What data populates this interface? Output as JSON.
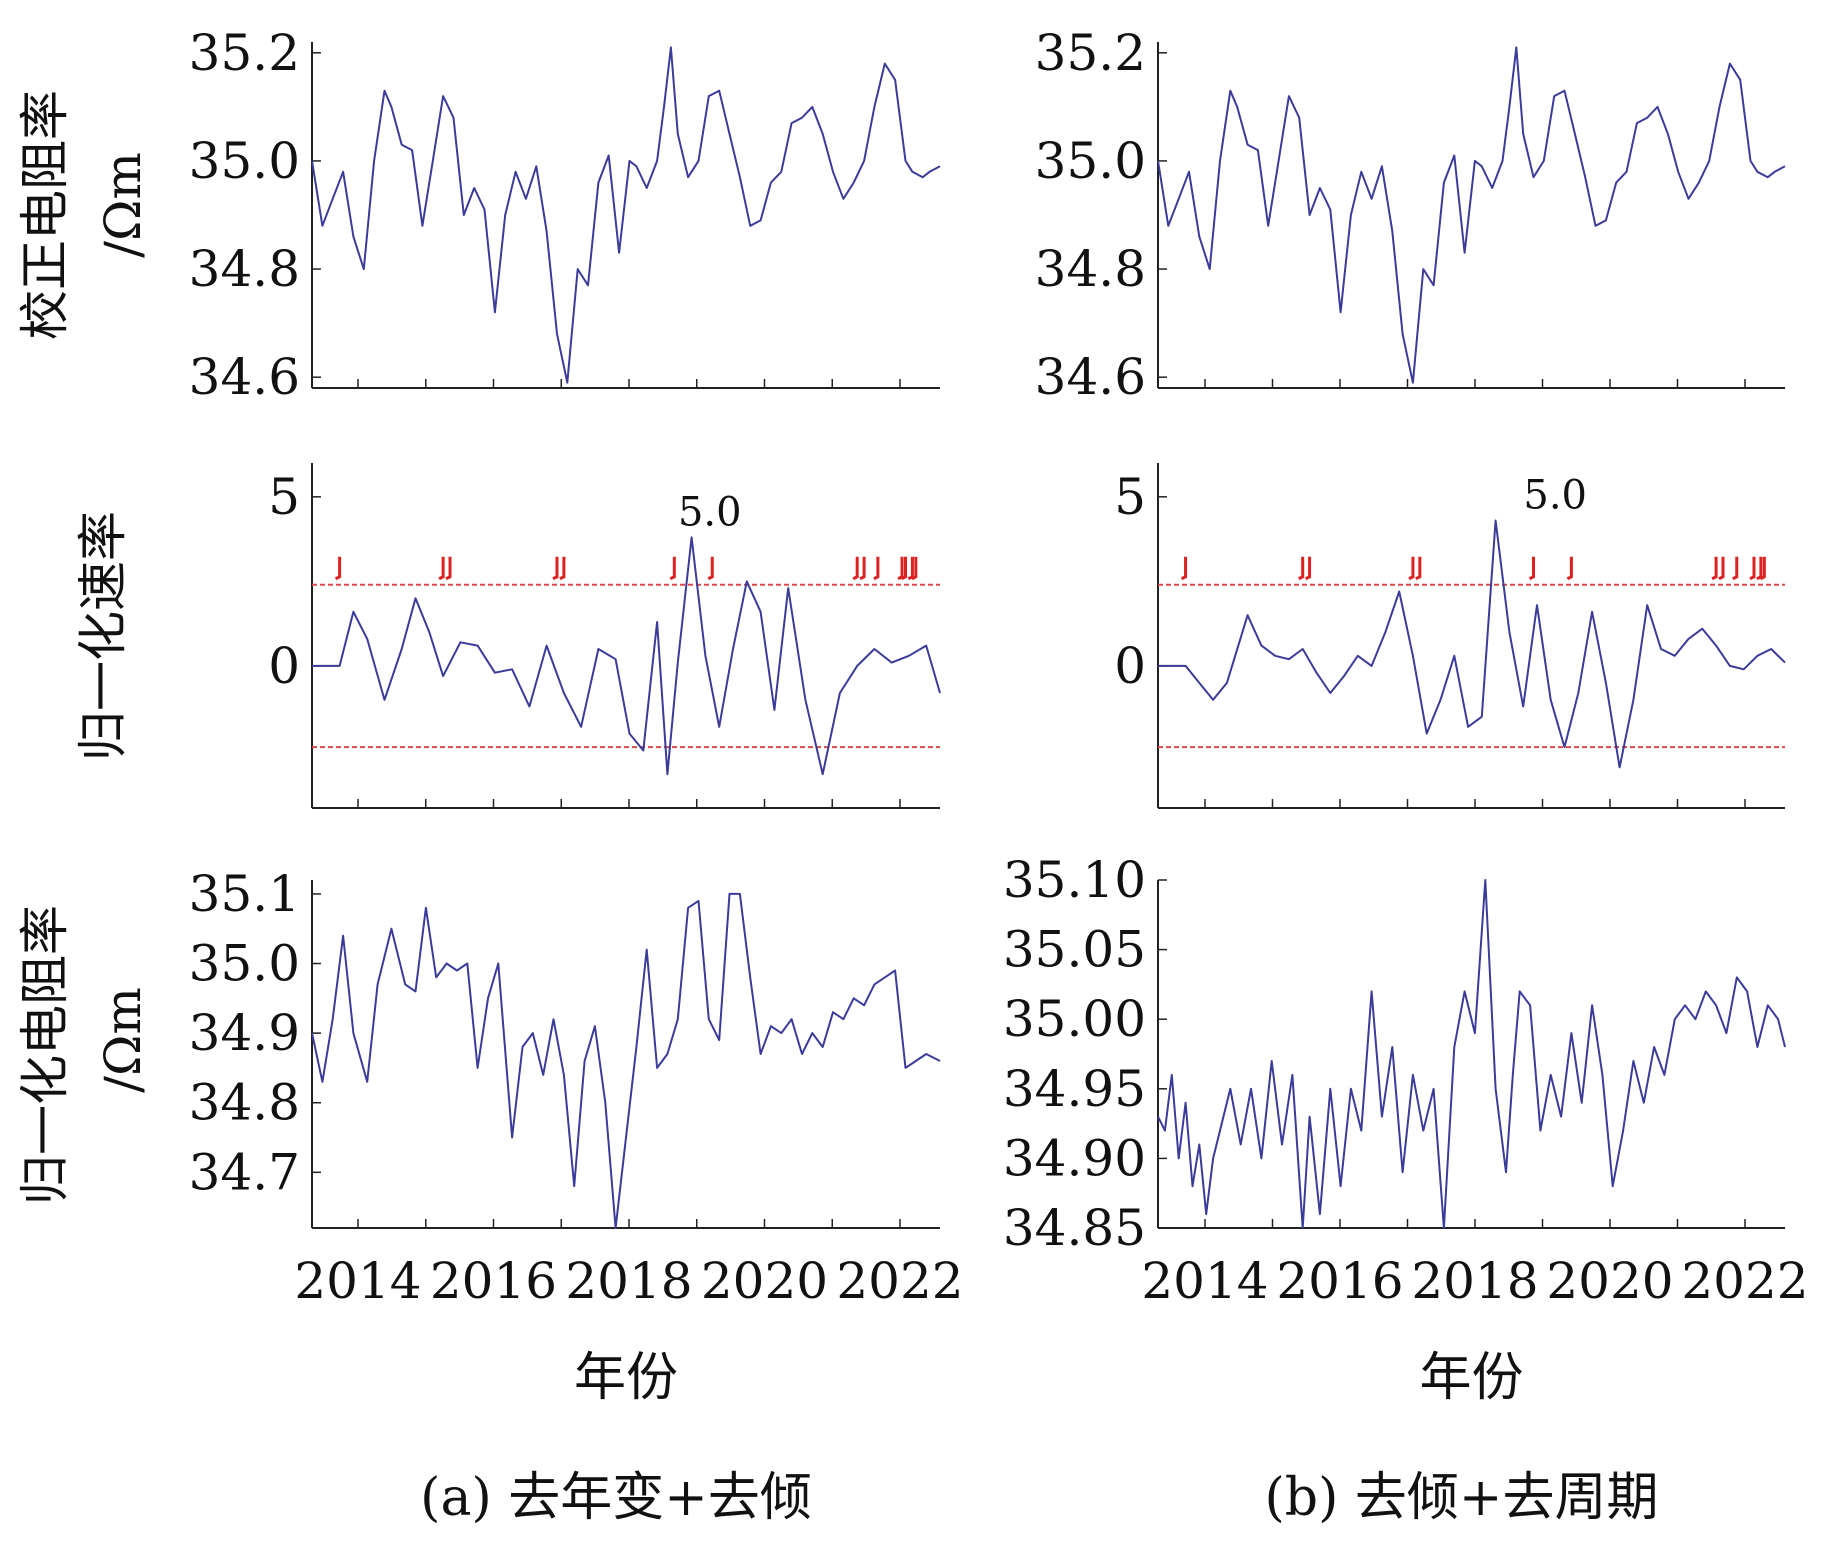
{
  "chart_data": [
    {
      "id": "a-top",
      "type": "line",
      "ylabel_lines": [
        "校正电阻率",
        "/Ωm"
      ],
      "xlim": [
        2013.4,
        2022.5
      ],
      "ylim": [
        34.58,
        35.22
      ],
      "yticks": [
        "34.6",
        "34.8",
        "35.0",
        "35.2"
      ],
      "line_color": "#3b3b9a",
      "series": [
        {
          "x": [
            2013.4,
            2013.55,
            2013.7,
            2013.85,
            2014.0,
            2014.15,
            2014.3,
            2014.45,
            2014.55,
            2014.7,
            2014.85,
            2015.0,
            2015.15,
            2015.3,
            2015.45,
            2015.6,
            2015.75,
            2015.9,
            2016.05,
            2016.2,
            2016.35,
            2016.5,
            2016.65,
            2016.8,
            2016.95,
            2017.1,
            2017.25,
            2017.4,
            2017.55,
            2017.7,
            2017.85,
            2018.0,
            2018.1,
            2018.25,
            2018.4,
            2018.5,
            2018.6,
            2018.7,
            2018.85,
            2019.0,
            2019.15,
            2019.3,
            2019.45,
            2019.6,
            2019.75,
            2019.9,
            2020.05,
            2020.2,
            2020.35,
            2020.5,
            2020.65,
            2020.8,
            2020.95,
            2021.1,
            2021.25,
            2021.4,
            2021.55,
            2021.7,
            2021.85,
            2022.0,
            2022.1,
            2022.25,
            2022.35,
            2022.5
          ],
          "y": [
            35.0,
            34.88,
            34.93,
            34.98,
            34.86,
            34.8,
            35.0,
            35.13,
            35.1,
            35.03,
            35.02,
            34.88,
            35.0,
            35.12,
            35.08,
            34.9,
            34.95,
            34.91,
            34.72,
            34.9,
            34.98,
            34.93,
            34.99,
            34.87,
            34.68,
            34.59,
            34.8,
            34.77,
            34.96,
            35.01,
            34.83,
            35.0,
            34.99,
            34.95,
            35.0,
            35.1,
            35.21,
            35.05,
            34.97,
            35.0,
            35.12,
            35.13,
            35.05,
            34.97,
            34.88,
            34.89,
            34.96,
            34.98,
            35.07,
            35.08,
            35.1,
            35.05,
            34.98,
            34.93,
            34.96,
            35.0,
            35.1,
            35.18,
            35.15,
            35.0,
            34.98,
            34.97,
            34.98,
            34.99
          ]
        }
      ]
    },
    {
      "id": "b-top",
      "type": "line",
      "xlim": [
        2013.4,
        2022.5
      ],
      "ylim": [
        34.58,
        35.22
      ],
      "yticks": [
        "34.6",
        "34.8",
        "35.0",
        "35.2"
      ],
      "line_color": "#3b3b9a",
      "series": [
        {
          "x": [
            2013.4,
            2013.55,
            2013.7,
            2013.85,
            2014.0,
            2014.15,
            2014.3,
            2014.45,
            2014.55,
            2014.7,
            2014.85,
            2015.0,
            2015.15,
            2015.3,
            2015.45,
            2015.6,
            2015.75,
            2015.9,
            2016.05,
            2016.2,
            2016.35,
            2016.5,
            2016.65,
            2016.8,
            2016.95,
            2017.1,
            2017.25,
            2017.4,
            2017.55,
            2017.7,
            2017.85,
            2018.0,
            2018.1,
            2018.25,
            2018.4,
            2018.5,
            2018.6,
            2018.7,
            2018.85,
            2019.0,
            2019.15,
            2019.3,
            2019.45,
            2019.6,
            2019.75,
            2019.9,
            2020.05,
            2020.2,
            2020.35,
            2020.5,
            2020.65,
            2020.8,
            2020.95,
            2021.1,
            2021.25,
            2021.4,
            2021.55,
            2021.7,
            2021.85,
            2022.0,
            2022.1,
            2022.25,
            2022.35,
            2022.5
          ],
          "y": [
            35.0,
            34.88,
            34.93,
            34.98,
            34.86,
            34.8,
            35.0,
            35.13,
            35.1,
            35.03,
            35.02,
            34.88,
            35.0,
            35.12,
            35.08,
            34.9,
            34.95,
            34.91,
            34.72,
            34.9,
            34.98,
            34.93,
            34.99,
            34.87,
            34.68,
            34.59,
            34.8,
            34.77,
            34.96,
            35.01,
            34.83,
            35.0,
            34.99,
            34.95,
            35.0,
            35.1,
            35.21,
            35.05,
            34.97,
            35.0,
            35.12,
            35.13,
            35.05,
            34.97,
            34.88,
            34.89,
            34.96,
            34.98,
            35.07,
            35.08,
            35.1,
            35.05,
            34.98,
            34.93,
            34.96,
            35.0,
            35.1,
            35.18,
            35.15,
            35.0,
            34.98,
            34.97,
            34.98,
            34.99
          ]
        }
      ]
    },
    {
      "id": "a-mid",
      "type": "line",
      "ylabel_lines": [
        "归一化速率"
      ],
      "xlim": [
        2013.4,
        2022.5
      ],
      "ylim": [
        -4.2,
        6.0
      ],
      "yticks": [
        "0",
        "5"
      ],
      "ytick_values": [
        0,
        5
      ],
      "threshold_lines": [
        2.4,
        -2.4
      ],
      "threshold_color": "#d84a4a",
      "line_color": "#3b3b9a",
      "annotation": {
        "text": "5.0",
        "x": 2018.5,
        "y": 3.8
      },
      "alarm_marks_x": [
        2013.8,
        2015.3,
        2015.4,
        2016.95,
        2017.05,
        2018.65,
        2019.2,
        2021.3,
        2021.4,
        2021.6,
        2021.95,
        2022.0,
        2022.1,
        2022.15
      ],
      "series": [
        {
          "x": [
            2013.4,
            2013.6,
            2013.8,
            2014.0,
            2014.2,
            2014.45,
            2014.7,
            2014.9,
            2015.1,
            2015.3,
            2015.55,
            2015.8,
            2016.05,
            2016.3,
            2016.55,
            2016.8,
            2017.05,
            2017.3,
            2017.55,
            2017.8,
            2018.0,
            2018.2,
            2018.4,
            2018.55,
            2018.7,
            2018.9,
            2019.1,
            2019.3,
            2019.5,
            2019.7,
            2019.9,
            2020.1,
            2020.3,
            2020.55,
            2020.8,
            2021.05,
            2021.3,
            2021.55,
            2021.8,
            2022.05,
            2022.3,
            2022.5
          ],
          "y": [
            0.0,
            0.0,
            0.0,
            1.6,
            0.8,
            -1.0,
            0.5,
            2.0,
            1.0,
            -0.3,
            0.7,
            0.6,
            -0.2,
            -0.1,
            -1.2,
            0.6,
            -0.8,
            -1.8,
            0.5,
            0.2,
            -2.0,
            -2.5,
            1.3,
            -3.2,
            0.1,
            3.8,
            0.3,
            -1.8,
            0.5,
            2.5,
            1.6,
            -1.3,
            2.3,
            -1.0,
            -3.2,
            -0.8,
            0.0,
            0.5,
            0.1,
            0.3,
            0.6,
            -0.8
          ]
        }
      ]
    },
    {
      "id": "b-mid",
      "type": "line",
      "xlim": [
        2013.4,
        2022.5
      ],
      "ylim": [
        -4.2,
        6.0
      ],
      "yticks": [
        "0",
        "5"
      ],
      "ytick_values": [
        0,
        5
      ],
      "threshold_lines": [
        2.4,
        -2.4
      ],
      "threshold_color": "#d84a4a",
      "line_color": "#3b3b9a",
      "annotation": {
        "text": "5.0",
        "x": 2018.5,
        "y": 4.3
      },
      "alarm_marks_x": [
        2013.8,
        2015.5,
        2015.6,
        2017.1,
        2017.2,
        2018.85,
        2019.4,
        2021.5,
        2021.6,
        2021.8,
        2022.05,
        2022.15,
        2022.2
      ],
      "series": [
        {
          "x": [
            2013.4,
            2013.6,
            2013.8,
            2014.0,
            2014.2,
            2014.4,
            2014.7,
            2014.9,
            2015.1,
            2015.3,
            2015.5,
            2015.7,
            2015.9,
            2016.1,
            2016.3,
            2016.5,
            2016.7,
            2016.9,
            2017.1,
            2017.3,
            2017.5,
            2017.7,
            2017.9,
            2018.1,
            2018.3,
            2018.5,
            2018.7,
            2018.9,
            2019.1,
            2019.3,
            2019.5,
            2019.7,
            2019.9,
            2020.1,
            2020.3,
            2020.5,
            2020.7,
            2020.9,
            2021.1,
            2021.3,
            2021.5,
            2021.7,
            2021.9,
            2022.1,
            2022.3,
            2022.5
          ],
          "y": [
            0.0,
            0.0,
            0.0,
            -0.5,
            -1.0,
            -0.5,
            1.5,
            0.6,
            0.3,
            0.2,
            0.5,
            -0.2,
            -0.8,
            -0.3,
            0.3,
            0.0,
            1.0,
            2.2,
            0.3,
            -2.0,
            -1.0,
            0.3,
            -1.8,
            -1.5,
            4.3,
            1.0,
            -1.2,
            1.8,
            -1.0,
            -2.4,
            -0.8,
            1.6,
            -0.5,
            -3.0,
            -1.0,
            1.8,
            0.5,
            0.3,
            0.8,
            1.1,
            0.6,
            0.0,
            -0.1,
            0.3,
            0.5,
            0.1
          ]
        }
      ]
    },
    {
      "id": "a-bot",
      "type": "line",
      "ylabel_lines": [
        "归一化电阻率",
        "/Ωm"
      ],
      "xlim": [
        2013.4,
        2022.5
      ],
      "ylim": [
        34.62,
        35.12
      ],
      "yticks": [
        "34.7",
        "34.8",
        "34.9",
        "35.0",
        "35.1"
      ],
      "xticks": [
        "2014",
        "2016",
        "2018",
        "2020",
        "2022"
      ],
      "xlabel": "年份",
      "caption": "(a) 去年变+去倾",
      "line_color": "#3b3b9a",
      "series": [
        {
          "x": [
            2013.4,
            2013.55,
            2013.7,
            2013.85,
            2014.0,
            2014.2,
            2014.35,
            2014.55,
            2014.75,
            2014.9,
            2015.05,
            2015.2,
            2015.35,
            2015.5,
            2015.65,
            2015.8,
            2015.95,
            2016.1,
            2016.3,
            2016.45,
            2016.6,
            2016.75,
            2016.9,
            2017.05,
            2017.2,
            2017.35,
            2017.5,
            2017.65,
            2017.8,
            2017.95,
            2018.1,
            2018.25,
            2018.4,
            2018.55,
            2018.7,
            2018.85,
            2019.0,
            2019.15,
            2019.3,
            2019.45,
            2019.6,
            2019.75,
            2019.9,
            2020.05,
            2020.2,
            2020.35,
            2020.5,
            2020.65,
            2020.8,
            2020.95,
            2021.1,
            2021.25,
            2021.4,
            2021.55,
            2021.7,
            2021.85,
            2022.0,
            2022.15,
            2022.3,
            2022.5
          ],
          "y": [
            34.9,
            34.83,
            34.92,
            35.04,
            34.9,
            34.83,
            34.97,
            35.05,
            34.97,
            34.96,
            35.08,
            34.98,
            35.0,
            34.99,
            35.0,
            34.85,
            34.95,
            35.0,
            34.75,
            34.88,
            34.9,
            34.84,
            34.92,
            34.84,
            34.68,
            34.86,
            34.91,
            34.8,
            34.62,
            34.75,
            34.88,
            35.02,
            34.85,
            34.87,
            34.92,
            35.08,
            35.09,
            34.92,
            34.89,
            35.1,
            35.1,
            34.98,
            34.87,
            34.91,
            34.9,
            34.92,
            34.87,
            34.9,
            34.88,
            34.93,
            34.92,
            34.95,
            34.94,
            34.97,
            34.98,
            34.99,
            34.85,
            34.86,
            34.87,
            34.86
          ]
        }
      ]
    },
    {
      "id": "b-bot",
      "type": "line",
      "xlim": [
        2013.4,
        2022.5
      ],
      "ylim": [
        34.85,
        35.1
      ],
      "yticks": [
        "34.85",
        "34.90",
        "34.95",
        "35.00",
        "35.05",
        "35.10"
      ],
      "xticks": [
        "2014",
        "2016",
        "2018",
        "2020",
        "2022"
      ],
      "xlabel": "年份",
      "caption": "(b) 去倾+去周期",
      "line_color": "#3b3b9a",
      "series": [
        {
          "x": [
            2013.4,
            2013.5,
            2013.6,
            2013.7,
            2013.8,
            2013.9,
            2014.0,
            2014.1,
            2014.2,
            2014.3,
            2014.45,
            2014.6,
            2014.75,
            2014.9,
            2015.05,
            2015.2,
            2015.35,
            2015.5,
            2015.6,
            2015.75,
            2015.9,
            2016.05,
            2016.2,
            2016.35,
            2016.5,
            2016.65,
            2016.8,
            2016.95,
            2017.1,
            2017.25,
            2017.4,
            2017.55,
            2017.7,
            2017.85,
            2018.0,
            2018.15,
            2018.3,
            2018.45,
            2018.55,
            2018.65,
            2018.8,
            2018.95,
            2019.1,
            2019.25,
            2019.4,
            2019.55,
            2019.7,
            2019.85,
            2020.0,
            2020.15,
            2020.3,
            2020.45,
            2020.6,
            2020.75,
            2020.9,
            2021.05,
            2021.2,
            2021.35,
            2021.5,
            2021.65,
            2021.8,
            2021.95,
            2022.1,
            2022.25,
            2022.4,
            2022.5
          ],
          "y": [
            34.93,
            34.92,
            34.96,
            34.9,
            34.94,
            34.88,
            34.91,
            34.86,
            34.9,
            34.92,
            34.95,
            34.91,
            34.95,
            34.9,
            34.97,
            34.91,
            34.96,
            34.85,
            34.93,
            34.86,
            34.95,
            34.88,
            34.95,
            34.92,
            35.02,
            34.93,
            34.98,
            34.89,
            34.96,
            34.92,
            34.95,
            34.85,
            34.98,
            35.02,
            34.99,
            35.1,
            34.95,
            34.89,
            34.96,
            35.02,
            35.01,
            34.92,
            34.96,
            34.93,
            34.99,
            34.94,
            35.01,
            34.96,
            34.88,
            34.92,
            34.97,
            34.94,
            34.98,
            34.96,
            35.0,
            35.01,
            35.0,
            35.02,
            35.01,
            34.99,
            35.03,
            35.02,
            34.98,
            35.01,
            35.0,
            34.98
          ]
        }
      ]
    }
  ]
}
